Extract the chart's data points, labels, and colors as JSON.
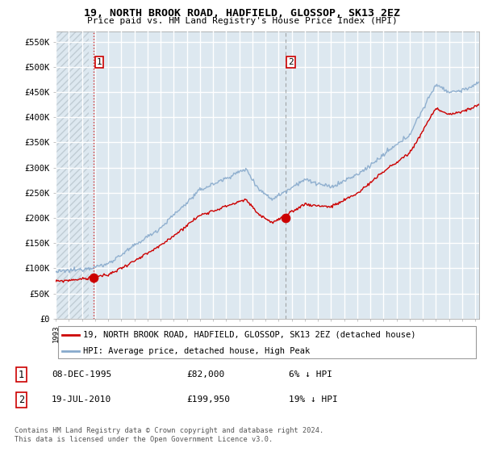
{
  "title": "19, NORTH BROOK ROAD, HADFIELD, GLOSSOP, SK13 2EZ",
  "subtitle": "Price paid vs. HM Land Registry's House Price Index (HPI)",
  "legend_line1": "19, NORTH BROOK ROAD, HADFIELD, GLOSSOP, SK13 2EZ (detached house)",
  "legend_line2": "HPI: Average price, detached house, High Peak",
  "footnote": "Contains HM Land Registry data © Crown copyright and database right 2024.\nThis data is licensed under the Open Government Licence v3.0.",
  "sale1_date": "08-DEC-1995",
  "sale1_price": "£82,000",
  "sale1_hpi": "6% ↓ HPI",
  "sale2_date": "19-JUL-2010",
  "sale2_price": "£199,950",
  "sale2_hpi": "19% ↓ HPI",
  "sale_color": "#cc0000",
  "hpi_color": "#88aacc",
  "bg_color": "#dde8f0",
  "hatch_color": "#c0ccd4",
  "grid_color": "#ffffff",
  "ylim": [
    0,
    570000
  ],
  "yticks": [
    0,
    50000,
    100000,
    150000,
    200000,
    250000,
    300000,
    350000,
    400000,
    450000,
    500000,
    550000
  ],
  "ytick_labels": [
    "£0",
    "£50K",
    "£100K",
    "£150K",
    "£200K",
    "£250K",
    "£300K",
    "£350K",
    "£400K",
    "£450K",
    "£500K",
    "£550K"
  ],
  "sale1_x": 1995.92,
  "sale1_y": 82000,
  "sale2_x": 2010.54,
  "sale2_y": 199950,
  "xmin": 1993,
  "xmax": 2025.3
}
